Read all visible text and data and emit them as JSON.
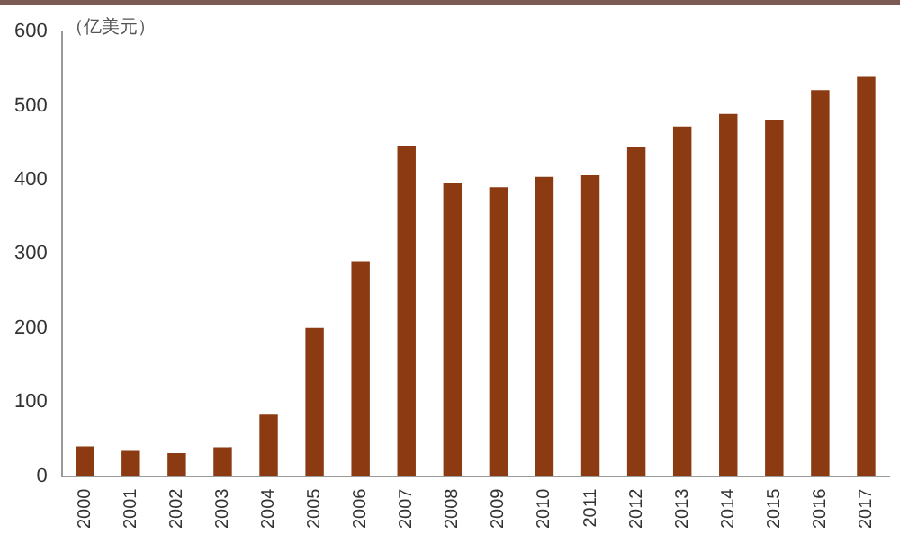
{
  "chart_data": {
    "type": "bar",
    "ylabel": "（亿美元）",
    "categories": [
      "2000",
      "2001",
      "2002",
      "2003",
      "2004",
      "2005",
      "2006",
      "2007",
      "2008",
      "2009",
      "2010",
      "2011",
      "2012",
      "2013",
      "2014",
      "2015",
      "2016",
      "2017"
    ],
    "values": [
      40,
      34,
      31,
      39,
      83,
      200,
      290,
      446,
      395,
      390,
      404,
      406,
      445,
      472,
      489,
      481,
      521,
      539
    ],
    "color": "#8b3a12",
    "ylim": [
      0,
      600
    ],
    "yticks": [
      0,
      100,
      200,
      300,
      400,
      500,
      600
    ],
    "grid": false,
    "legend": false
  }
}
